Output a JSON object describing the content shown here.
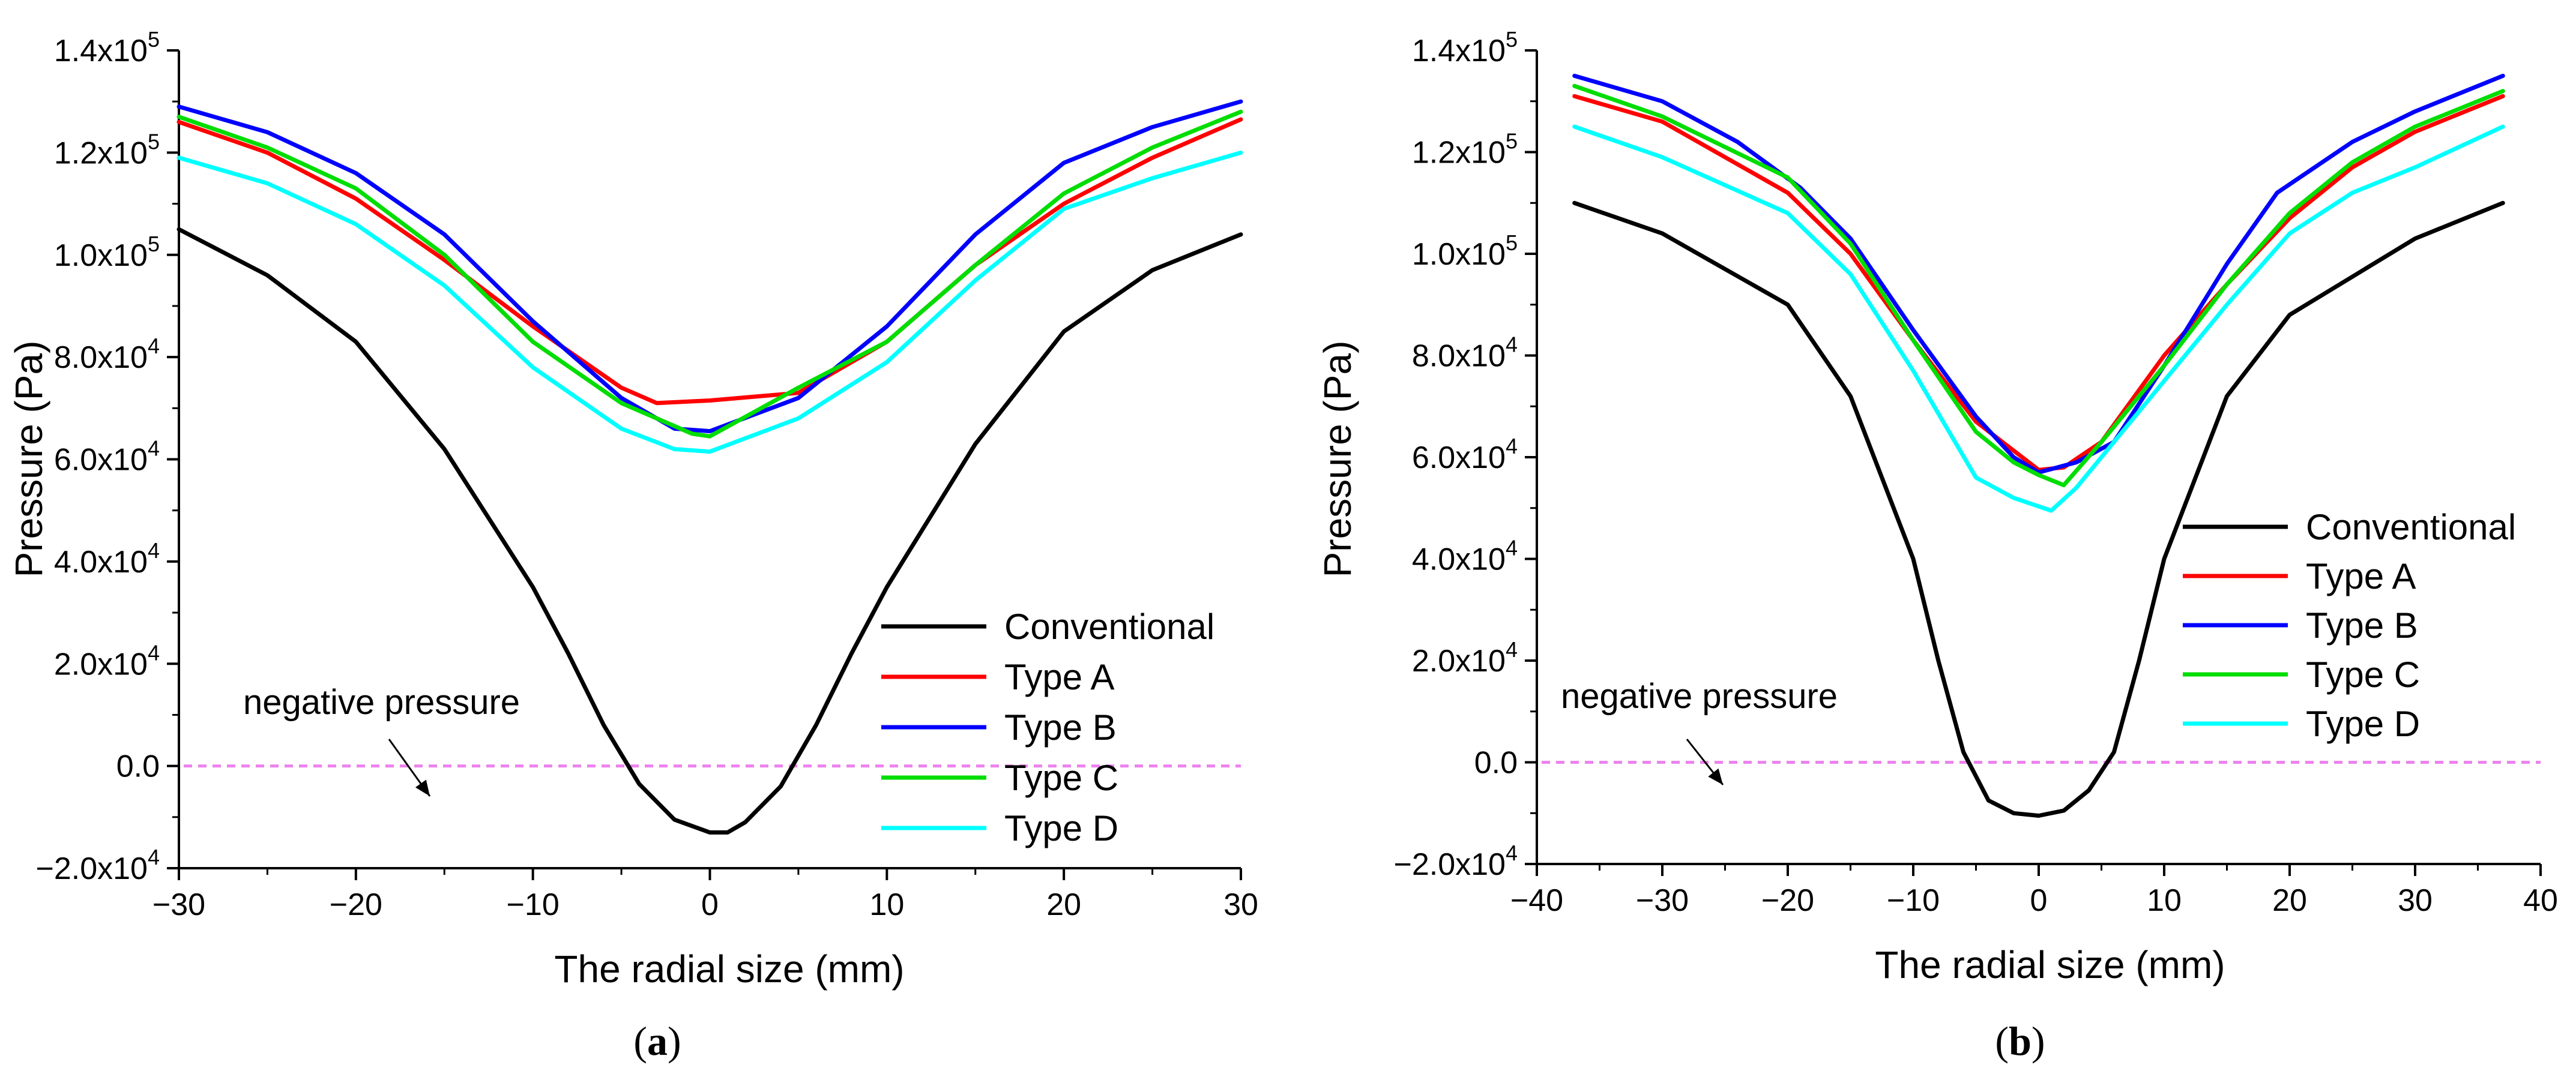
{
  "chart_data": [
    {
      "type": "line",
      "panel_label": "a",
      "xlabel": "The radial size (mm)",
      "ylabel": "Pressure (Pa)",
      "xlim": [
        -30,
        30
      ],
      "ylim": [
        -20000,
        140000
      ],
      "xticks": [
        -30,
        -20,
        -10,
        0,
        10,
        20,
        30
      ],
      "xtick_labels": [
        "−30",
        "−20",
        "−10",
        "0",
        "10",
        "20",
        "30"
      ],
      "yticks": [
        -20000,
        0,
        20000,
        40000,
        60000,
        80000,
        100000,
        120000,
        140000
      ],
      "ytick_labels": [
        {
          "base": "−2.0x10",
          "exp": "4"
        },
        {
          "base": "0.0",
          "exp": ""
        },
        {
          "base": "2.0x10",
          "exp": "4"
        },
        {
          "base": "4.0x10",
          "exp": "4"
        },
        {
          "base": "6.0x10",
          "exp": "4"
        },
        {
          "base": "8.0x10",
          "exp": "4"
        },
        {
          "base": "1.0x10",
          "exp": "5"
        },
        {
          "base": "1.2x10",
          "exp": "5"
        },
        {
          "base": "1.4x10",
          "exp": "5"
        }
      ],
      "annotation": "negative pressure",
      "reference_line": {
        "y": 0,
        "color": "#ee82ee",
        "style": "dashed"
      },
      "series": [
        {
          "name": "Conventional",
          "color": "#000000",
          "x": [
            -30,
            -25,
            -20,
            -15,
            -10,
            -8,
            -6,
            -4,
            -2,
            0,
            1,
            2,
            4,
            6,
            8,
            10,
            15,
            20,
            25,
            30
          ],
          "y": [
            105000,
            96000,
            83000,
            62000,
            35000,
            22000,
            8000,
            -3500,
            -10500,
            -13000,
            -13000,
            -11000,
            -4000,
            8000,
            22000,
            35000,
            63000,
            85000,
            97000,
            104000
          ]
        },
        {
          "name": "Type A",
          "color": "#ff0000",
          "x": [
            -30,
            -25,
            -20,
            -15,
            -10,
            -5,
            -3,
            0,
            5,
            10,
            15,
            20,
            25,
            30
          ],
          "y": [
            126000,
            120000,
            111000,
            99000,
            86000,
            74000,
            71000,
            71500,
            73000,
            83000,
            98000,
            110000,
            119000,
            126500
          ]
        },
        {
          "name": "Type B",
          "color": "#0000ff",
          "x": [
            -30,
            -25,
            -20,
            -15,
            -10,
            -5,
            -2,
            0,
            5,
            10,
            15,
            20,
            25,
            30
          ],
          "y": [
            129000,
            124000,
            116000,
            104000,
            87000,
            72000,
            66000,
            65500,
            72000,
            86000,
            104000,
            118000,
            125000,
            130000
          ]
        },
        {
          "name": "Type C",
          "color": "#00dd00",
          "x": [
            -30,
            -25,
            -20,
            -15,
            -10,
            -5,
            -1,
            0,
            5,
            10,
            15,
            20,
            25,
            30
          ],
          "y": [
            127000,
            121000,
            113000,
            100000,
            83000,
            71000,
            65000,
            64500,
            74000,
            83000,
            98000,
            112000,
            121000,
            128000
          ]
        },
        {
          "name": "Type D",
          "color": "#00ffff",
          "x": [
            -30,
            -25,
            -20,
            -15,
            -10,
            -5,
            -2,
            0,
            5,
            10,
            15,
            20,
            25,
            30
          ],
          "y": [
            119000,
            114000,
            106000,
            94000,
            78000,
            66000,
            62000,
            61500,
            68000,
            79000,
            95000,
            109000,
            115000,
            120000
          ]
        }
      ]
    },
    {
      "type": "line",
      "panel_label": "b",
      "xlabel": "The radial size (mm)",
      "ylabel": "Pressure (Pa)",
      "xlim": [
        -40,
        40
      ],
      "ylim": [
        -20000,
        140000
      ],
      "xticks": [
        -40,
        -30,
        -20,
        -10,
        0,
        10,
        20,
        30,
        40
      ],
      "xtick_labels": [
        "−40",
        "−30",
        "−20",
        "−10",
        "0",
        "10",
        "20",
        "30",
        "40"
      ],
      "yticks": [
        -20000,
        0,
        20000,
        40000,
        60000,
        80000,
        100000,
        120000,
        140000
      ],
      "ytick_labels": [
        {
          "base": "−2.0x10",
          "exp": "4"
        },
        {
          "base": "0.0",
          "exp": ""
        },
        {
          "base": "2.0x10",
          "exp": "4"
        },
        {
          "base": "4.0x10",
          "exp": "4"
        },
        {
          "base": "6.0x10",
          "exp": "4"
        },
        {
          "base": "8.0x10",
          "exp": "4"
        },
        {
          "base": "1.0x10",
          "exp": "5"
        },
        {
          "base": "1.2x10",
          "exp": "5"
        },
        {
          "base": "1.4x10",
          "exp": "5"
        }
      ],
      "annotation": "negative pressure",
      "reference_line": {
        "y": 0,
        "color": "#ee82ee",
        "style": "dashed"
      },
      "series": [
        {
          "name": "Conventional",
          "color": "#000000",
          "x": [
            -37,
            -30,
            -20,
            -15,
            -10,
            -8,
            -6,
            -4,
            -2,
            0,
            2,
            4,
            6,
            8,
            10,
            15,
            20,
            30,
            37
          ],
          "y": [
            110000,
            104000,
            90000,
            72000,
            40000,
            20000,
            2000,
            -7500,
            -10000,
            -10500,
            -9500,
            -5500,
            2000,
            20000,
            40000,
            72000,
            88000,
            103000,
            110000
          ]
        },
        {
          "name": "Type A",
          "color": "#ff0000",
          "x": [
            -37,
            -30,
            -20,
            -15,
            -10,
            -5,
            0,
            2,
            5,
            10,
            15,
            20,
            25,
            30,
            37
          ],
          "y": [
            131000,
            126000,
            112000,
            100000,
            83000,
            67000,
            57500,
            58000,
            63000,
            80000,
            94000,
            107000,
            117000,
            124000,
            131000
          ]
        },
        {
          "name": "Type B",
          "color": "#0000ff",
          "x": [
            -37,
            -30,
            -24,
            -19,
            -15,
            -10,
            -5,
            -2,
            0,
            3,
            6,
            10,
            15,
            19,
            25,
            30,
            37
          ],
          "y": [
            135000,
            130000,
            122000,
            113000,
            103000,
            85000,
            68000,
            60000,
            57000,
            59000,
            63000,
            78000,
            98000,
            112000,
            122000,
            128000,
            135000
          ]
        },
        {
          "name": "Type C",
          "color": "#00dd00",
          "x": [
            -37,
            -30,
            -20,
            -15,
            -10,
            -5,
            -2,
            0,
            2,
            5,
            10,
            15,
            20,
            25,
            30,
            37
          ],
          "y": [
            133000,
            127000,
            115000,
            102000,
            83000,
            65000,
            59000,
            56500,
            54500,
            63000,
            78000,
            94000,
            108000,
            118000,
            125000,
            132000
          ]
        },
        {
          "name": "Type D",
          "color": "#00ffff",
          "x": [
            -37,
            -30,
            -20,
            -15,
            -10,
            -5,
            -2,
            1,
            3,
            5,
            10,
            15,
            20,
            25,
            30,
            37
          ],
          "y": [
            125000,
            119000,
            108000,
            96000,
            77000,
            56000,
            52000,
            49500,
            54000,
            60000,
            75000,
            90000,
            104000,
            112000,
            117000,
            125000
          ]
        }
      ]
    }
  ]
}
